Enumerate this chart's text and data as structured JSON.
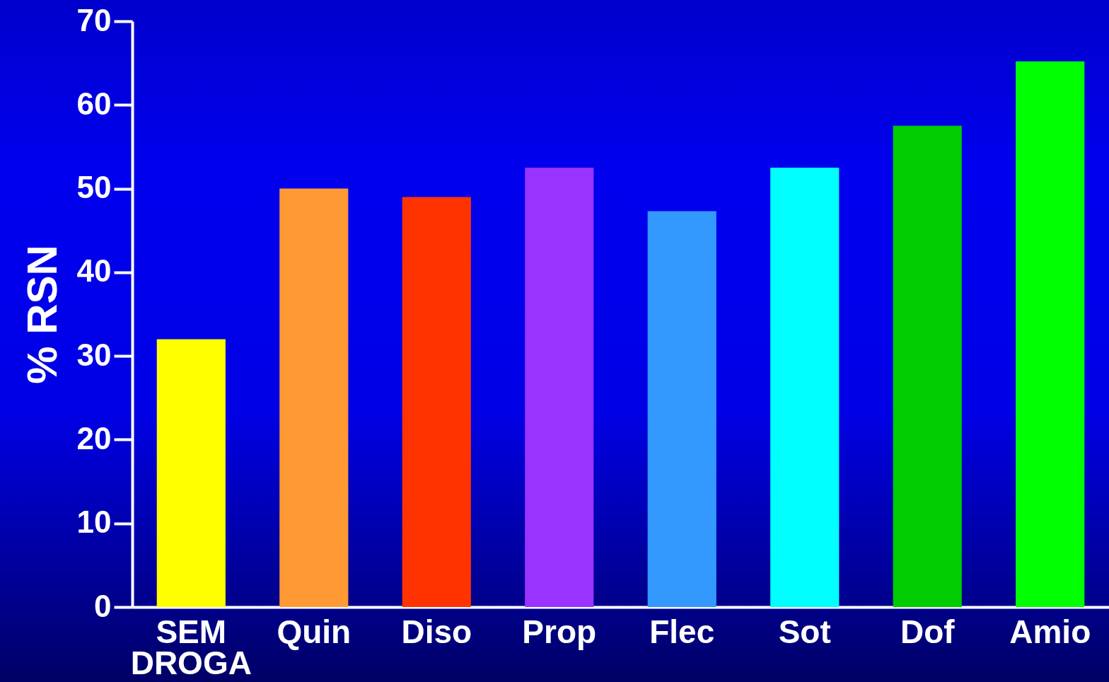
{
  "chart_data": {
    "type": "bar",
    "ylabel": "% RSN",
    "categories": [
      "SEM DROGA",
      "Quin",
      "Diso",
      "Prop",
      "Flec",
      "Sot",
      "Dof",
      "Amio"
    ],
    "values": [
      32,
      50,
      49,
      52.5,
      47.3,
      52.5,
      57.5,
      65.2
    ],
    "colors": [
      "#ffff00",
      "#ff9933",
      "#ff3300",
      "#9933ff",
      "#3399ff",
      "#00ffff",
      "#00cc00",
      "#00ff00"
    ],
    "ylim": [
      0,
      70
    ],
    "yticks": [
      0,
      10,
      20,
      30,
      40,
      50,
      60,
      70
    ],
    "grid": false,
    "legend": false
  }
}
